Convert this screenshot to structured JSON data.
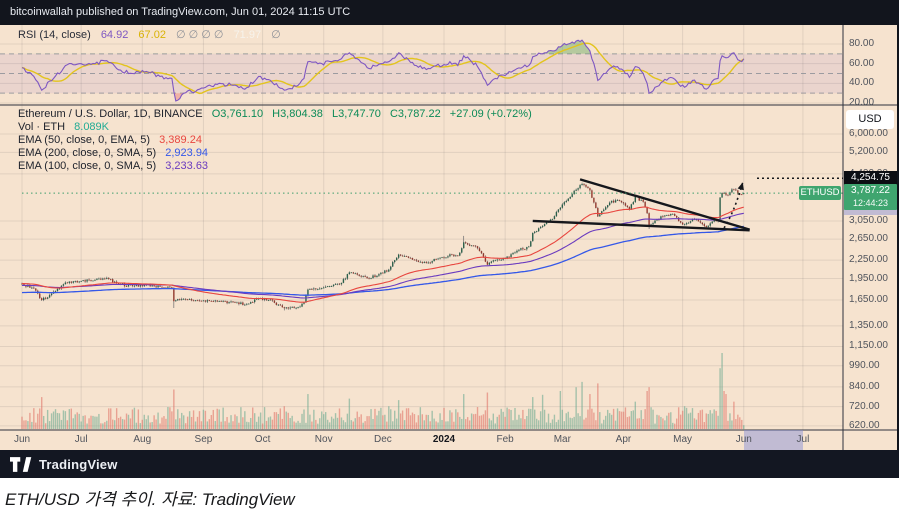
{
  "topbar": {
    "text": "bitcoinwallah published on TradingView.com, Jun 01, 2024 11:15 UTC"
  },
  "rsi_legend": {
    "title": "RSI (14, close)",
    "value_rsi": "64.92",
    "value_ma": "67.02",
    "empties": "∅  ∅  ∅  ∅",
    "value_band": "71.97",
    "empty_last": "∅"
  },
  "main_legend": {
    "title": "Ethereum / U.S. Dollar, 1D, BINANCE",
    "o": "O3,761.10",
    "h": "H3,804.38",
    "l": "L3,747.70",
    "c": "C3,787.22",
    "change": "+27.09 (+0.72%)",
    "vol_label": "Vol · ETH",
    "vol_value": "8.089K",
    "ema": [
      {
        "label": "EMA (50, close, 0, EMA, 5)",
        "value": "3,389.24",
        "color": "#e8463f"
      },
      {
        "label": "EMA (200, close, 0, SMA, 5)",
        "value": "2,923.94",
        "color": "#3558e8"
      },
      {
        "label": "EMA (100, close, 0, SMA, 5)",
        "value": "3,233.63",
        "color": "#6a3bbf"
      }
    ]
  },
  "axis": {
    "usd_button": "USD",
    "price_label_target": "4,254.75",
    "price_label_current": "3,787.22",
    "countdown": "12:44:23",
    "symbol_tag": "ETHUSD"
  },
  "footer": {
    "brand": "TradingView"
  },
  "caption": {
    "text": "ETH/USD 가격 추이. 자료: TradingView"
  },
  "chart_data": {
    "type": "candlestick",
    "symbol": "ETHUSD",
    "interval": "1D",
    "exchange": "BINANCE",
    "price_scale": "log",
    "price_ticks": [
      6000,
      5200,
      4400,
      3050,
      2650,
      2250,
      1950,
      1650,
      1350,
      1150,
      990,
      840,
      720,
      620
    ],
    "rsi_ticks": [
      80,
      60,
      40,
      20
    ],
    "rsi_dashed_levels": [
      70,
      50,
      30
    ],
    "rsi_current": 64.92,
    "rsi_ma_current": 67.02,
    "x_labels": [
      [
        "Jun",
        0
      ],
      [
        "Jul",
        30
      ],
      [
        "Aug",
        61
      ],
      [
        "Sep",
        92
      ],
      [
        "Oct",
        122
      ],
      [
        "Nov",
        153
      ],
      [
        "Dec",
        183
      ],
      [
        "2024",
        214
      ],
      [
        "Feb",
        245
      ],
      [
        "Mar",
        274
      ],
      [
        "Apr",
        305
      ],
      [
        "May",
        335
      ],
      [
        "Jun",
        366
      ],
      [
        "Jul",
        396
      ]
    ],
    "pre_history": [
      [
        -250,
        1350
      ],
      [
        -200,
        1255
      ],
      [
        -150,
        1555
      ],
      [
        -100,
        1805
      ],
      [
        -70,
        2050
      ],
      [
        -45,
        1830
      ],
      [
        -20,
        1882
      ],
      [
        -1,
        1866
      ]
    ],
    "close_keypoints": [
      [
        0,
        1868
      ],
      [
        6,
        1805
      ],
      [
        10,
        1650
      ],
      [
        15,
        1735
      ],
      [
        22,
        1890
      ],
      [
        29,
        1905
      ],
      [
        37,
        1930
      ],
      [
        43,
        1960
      ],
      [
        48,
        1880
      ],
      [
        56,
        1840
      ],
      [
        63,
        1860
      ],
      [
        70,
        1830
      ],
      [
        76,
        1815
      ],
      [
        77,
        1635
      ],
      [
        82,
        1665
      ],
      [
        90,
        1640
      ],
      [
        100,
        1635
      ],
      [
        107,
        1622
      ],
      [
        113,
        1592
      ],
      [
        120,
        1668
      ],
      [
        126,
        1655
      ],
      [
        133,
        1548
      ],
      [
        140,
        1562
      ],
      [
        143,
        1620
      ],
      [
        145,
        1790
      ],
      [
        150,
        1795
      ],
      [
        157,
        1840
      ],
      [
        162,
        1885
      ],
      [
        166,
        2045
      ],
      [
        170,
        2010
      ],
      [
        176,
        1948
      ],
      [
        182,
        2040
      ],
      [
        186,
        2090
      ],
      [
        191,
        2350
      ],
      [
        196,
        2290
      ],
      [
        200,
        2242
      ],
      [
        205,
        2202
      ],
      [
        210,
        2268
      ],
      [
        214,
        2292
      ],
      [
        217,
        2355
      ],
      [
        221,
        2330
      ],
      [
        224,
        2585
      ],
      [
        228,
        2522
      ],
      [
        231,
        2468
      ],
      [
        236,
        2172
      ],
      [
        240,
        2246
      ],
      [
        245,
        2282
      ],
      [
        251,
        2420
      ],
      [
        257,
        2502
      ],
      [
        259,
        2780
      ],
      [
        264,
        2932
      ],
      [
        269,
        3098
      ],
      [
        273,
        3382
      ],
      [
        277,
        3630
      ],
      [
        281,
        3892
      ],
      [
        284,
        4068
      ],
      [
        286,
        3982
      ],
      [
        288,
        3872
      ],
      [
        290,
        3522
      ],
      [
        292,
        3162
      ],
      [
        295,
        3332
      ],
      [
        298,
        3520
      ],
      [
        302,
        3592
      ],
      [
        305,
        3502
      ],
      [
        308,
        3332
      ],
      [
        311,
        3688
      ],
      [
        315,
        3542
      ],
      [
        317,
        3242
      ],
      [
        318,
        2952
      ],
      [
        321,
        3062
      ],
      [
        325,
        3162
      ],
      [
        329,
        3222
      ],
      [
        332,
        3132
      ],
      [
        334,
        3012
      ],
      [
        336,
        2972
      ],
      [
        340,
        3098
      ],
      [
        344,
        3012
      ],
      [
        347,
        2912
      ],
      [
        351,
        3068
      ],
      [
        353,
        3092
      ],
      [
        354,
        3662
      ],
      [
        355,
        3792
      ],
      [
        357,
        3742
      ],
      [
        359,
        3812
      ],
      [
        361,
        3898
      ],
      [
        363,
        3768
      ],
      [
        365,
        3748
      ],
      [
        366,
        3787.22
      ]
    ],
    "last_candle": {
      "open": 3761.1,
      "high": 3804.38,
      "low": 3747.7,
      "close": 3787.22
    },
    "overrides": {
      "77": {
        "low": 1551
      },
      "133": {
        "low": 1522
      },
      "224": {
        "high": 2717
      },
      "285": {
        "high": 4093
      },
      "318": {
        "low": 2866
      }
    },
    "rsi_keypoints": [
      [
        0,
        56
      ],
      [
        6,
        47
      ],
      [
        10,
        33
      ],
      [
        16,
        45
      ],
      [
        22,
        58
      ],
      [
        29,
        60
      ],
      [
        37,
        60
      ],
      [
        43,
        63
      ],
      [
        48,
        55
      ],
      [
        56,
        50
      ],
      [
        63,
        52
      ],
      [
        70,
        47
      ],
      [
        76,
        45
      ],
      [
        78,
        22
      ],
      [
        82,
        30
      ],
      [
        90,
        34
      ],
      [
        100,
        40
      ],
      [
        107,
        38
      ],
      [
        113,
        34
      ],
      [
        120,
        47
      ],
      [
        126,
        43
      ],
      [
        133,
        33
      ],
      [
        140,
        38
      ],
      [
        143,
        45
      ],
      [
        145,
        62
      ],
      [
        150,
        60
      ],
      [
        157,
        62
      ],
      [
        162,
        65
      ],
      [
        166,
        71
      ],
      [
        170,
        65
      ],
      [
        176,
        55
      ],
      [
        182,
        60
      ],
      [
        186,
        62
      ],
      [
        191,
        71
      ],
      [
        196,
        64
      ],
      [
        200,
        58
      ],
      [
        205,
        54
      ],
      [
        210,
        58
      ],
      [
        214,
        59
      ],
      [
        217,
        62
      ],
      [
        221,
        58
      ],
      [
        224,
        68
      ],
      [
        228,
        62
      ],
      [
        231,
        57
      ],
      [
        236,
        38
      ],
      [
        240,
        45
      ],
      [
        245,
        48
      ],
      [
        251,
        55
      ],
      [
        257,
        58
      ],
      [
        259,
        67
      ],
      [
        264,
        70
      ],
      [
        269,
        73
      ],
      [
        273,
        77
      ],
      [
        277,
        80
      ],
      [
        281,
        83
      ],
      [
        284,
        84
      ],
      [
        286,
        78
      ],
      [
        288,
        73
      ],
      [
        290,
        60
      ],
      [
        292,
        43
      ],
      [
        295,
        50
      ],
      [
        298,
        55
      ],
      [
        302,
        57
      ],
      [
        305,
        53
      ],
      [
        308,
        46
      ],
      [
        311,
        57
      ],
      [
        315,
        50
      ],
      [
        317,
        40
      ],
      [
        318,
        30
      ],
      [
        321,
        36
      ],
      [
        325,
        42
      ],
      [
        329,
        46
      ],
      [
        332,
        42
      ],
      [
        334,
        37
      ],
      [
        336,
        36
      ],
      [
        340,
        43
      ],
      [
        344,
        39
      ],
      [
        347,
        34
      ],
      [
        351,
        44
      ],
      [
        353,
        45
      ],
      [
        354,
        63
      ],
      [
        355,
        68
      ],
      [
        357,
        66
      ],
      [
        359,
        68
      ],
      [
        361,
        71
      ],
      [
        363,
        64
      ],
      [
        365,
        62
      ],
      [
        366,
        64.92
      ]
    ],
    "volume_current": 0.05,
    "volume_spikes": {
      "10": 0.42,
      "77": 0.52,
      "133": 0.3,
      "145": 0.46,
      "166": 0.4,
      "186": 0.3,
      "191": 0.38,
      "224": 0.46,
      "236": 0.48,
      "259": 0.42,
      "264": 0.45,
      "273": 0.5,
      "281": 0.55,
      "284": 0.62,
      "288": 0.46,
      "292": 0.6,
      "311": 0.36,
      "317": 0.5,
      "318": 0.55,
      "336": 0.3,
      "354": 0.8,
      "355": 1.0,
      "356": 0.5,
      "357": 0.46,
      "361": 0.36,
      "366": 0.05
    },
    "trendlines": [
      {
        "from_day": 259,
        "from_price": 3052,
        "to_day": 369,
        "to_price": 2838
      },
      {
        "from_day": 283,
        "from_price": 4215,
        "to_day": 369,
        "to_price": 2852
      }
    ],
    "breakout_arrow": [
      [
        356,
        2890
      ],
      [
        361,
        3240
      ],
      [
        365.5,
        4120
      ]
    ],
    "target_price": 4254.75,
    "current_price": 3787.22,
    "colors": {
      "background": "#f6e3cf",
      "candle_up": "#2a5f4a",
      "candle_down": "#91392e",
      "wick": "#53575e",
      "vol_up": "rgba(96,165,140,0.55)",
      "vol_down": "rgba(222,108,96,0.55)",
      "ema50": "#e8463f",
      "ema100": "#6a3bbf",
      "ema200": "#3558e8",
      "rsi": "#7e57c2",
      "rsi_ma": "#e3c41c",
      "rsi_fill_high": "rgba(76,160,80,0.38)",
      "rsi_fill_low": "rgba(232,96,96,0.38)",
      "rsi_band_fill": "rgba(126,87,194,0.10)",
      "trend": "#15171c",
      "current_line": "#3f9e6e",
      "grid": "rgba(70,74,86,0.12)",
      "dashed": "#8f9299",
      "separator": "#2e323c"
    }
  }
}
